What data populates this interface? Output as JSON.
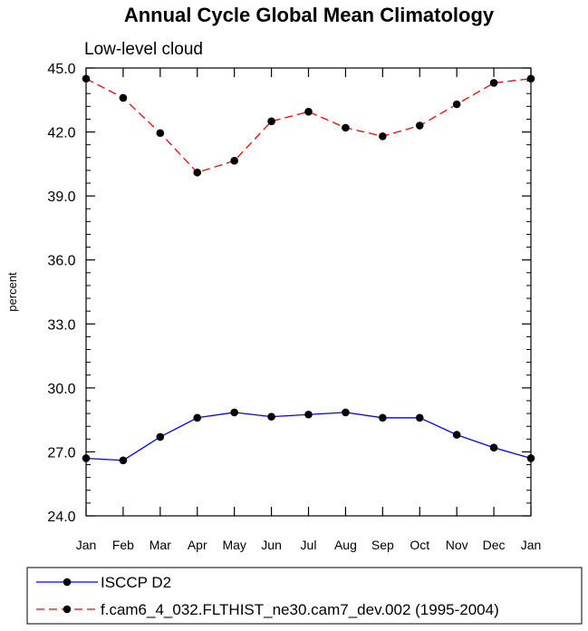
{
  "chart_data": {
    "type": "line",
    "title": "Annual Cycle Global Mean Climatology",
    "subtitle": "Low-level cloud",
    "xlabel": "",
    "ylabel": "percent",
    "categories": [
      "Jan",
      "Feb",
      "Mar",
      "Apr",
      "May",
      "Jun",
      "Jul",
      "Aug",
      "Sep",
      "Oct",
      "Nov",
      "Dec",
      "Jan"
    ],
    "ylim": [
      24.0,
      45.0
    ],
    "yticks": [
      "24.0",
      "27.0",
      "30.0",
      "33.0",
      "36.0",
      "39.0",
      "42.0",
      "45.0"
    ],
    "grid": false,
    "legend_position": "bottom",
    "series": [
      {
        "name": "ISCCP D2",
        "color": "#0000ff",
        "dash": "solid",
        "marker": "filled-circle",
        "values": [
          26.7,
          26.6,
          27.7,
          28.6,
          28.85,
          28.65,
          28.75,
          28.85,
          28.6,
          28.6,
          27.8,
          27.2,
          26.7
        ]
      },
      {
        "name": "f.cam6_4_032.FLTHIST_ne30.cam7_dev.002 (1995-2004)",
        "color": "#ff0000",
        "dash": "dashed",
        "marker": "filled-circle",
        "values": [
          44.5,
          43.6,
          41.95,
          40.1,
          40.65,
          42.5,
          42.95,
          42.2,
          41.8,
          42.3,
          43.3,
          44.3,
          44.5
        ]
      }
    ]
  }
}
